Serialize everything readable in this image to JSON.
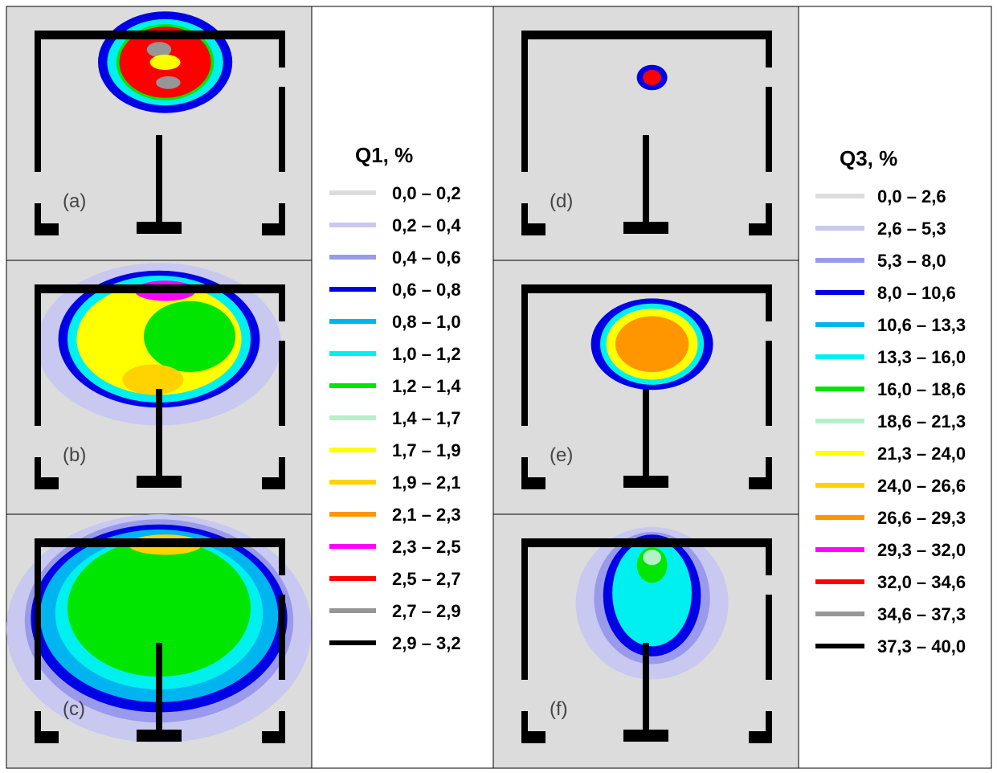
{
  "chart_data": {
    "type": "heatmap",
    "palette": [
      "#dcdcdc",
      "#c8c8f0",
      "#9a9aec",
      "#0000e6",
      "#00b4f0",
      "#00f0f0",
      "#00e600",
      "#b4f0c8",
      "#ffff00",
      "#ffd200",
      "#ff9600",
      "#ff00ff",
      "#ff0000",
      "#969696",
      "#000000"
    ],
    "legends": [
      {
        "title": "Q1, %",
        "ranges": [
          "0,0 – 0,2",
          "0,2 – 0,4",
          "0,4 – 0,6",
          "0,6 – 0,8",
          "0,8 – 1,0",
          "1,0 – 1,2",
          "1,2 – 1,4",
          "1,4 – 1,7",
          "1,7 – 1,9",
          "1,9 – 2,1",
          "2,1 – 2,3",
          "2,3 – 2,5",
          "2,5 – 2,7",
          "2,7 – 2,9",
          "2,9 – 3,2"
        ]
      },
      {
        "title": "Q3, %",
        "ranges": [
          "0,0 – 2,6",
          "2,6 – 5,3",
          "5,3 – 8,0",
          "8,0 – 10,6",
          "10,6 – 13,3",
          "13,3 – 16,0",
          "16,0 – 18,6",
          "18,6 – 21,3",
          "21,3 – 24,0",
          "24,0 – 26,6",
          "26,6 – 29,3",
          "29,3 – 32,0",
          "32,0 – 34,6",
          "34,6 – 37,3",
          "37,3 – 40,0"
        ]
      }
    ],
    "panels": [
      {
        "label": "(a)",
        "blobs": [
          {
            "level": 3,
            "cx": 0.52,
            "cy": 0.22,
            "rx": 0.22,
            "ry": 0.2
          },
          {
            "level": 5,
            "cx": 0.52,
            "cy": 0.22,
            "rx": 0.19,
            "ry": 0.17
          },
          {
            "level": 6,
            "cx": 0.52,
            "cy": 0.22,
            "rx": 0.16,
            "ry": 0.15
          },
          {
            "level": 12,
            "cx": 0.52,
            "cy": 0.22,
            "rx": 0.15,
            "ry": 0.14
          },
          {
            "level": 13,
            "cx": 0.5,
            "cy": 0.17,
            "rx": 0.04,
            "ry": 0.03
          },
          {
            "level": 13,
            "cx": 0.53,
            "cy": 0.3,
            "rx": 0.04,
            "ry": 0.025
          },
          {
            "level": 8,
            "cx": 0.52,
            "cy": 0.22,
            "rx": 0.05,
            "ry": 0.03
          }
        ]
      },
      {
        "label": "(b)",
        "blobs": [
          {
            "level": 1,
            "cx": 0.5,
            "cy": 0.33,
            "rx": 0.4,
            "ry": 0.32
          },
          {
            "level": 3,
            "cx": 0.5,
            "cy": 0.31,
            "rx": 0.33,
            "ry": 0.27
          },
          {
            "level": 5,
            "cx": 0.5,
            "cy": 0.31,
            "rx": 0.3,
            "ry": 0.25
          },
          {
            "level": 8,
            "cx": 0.5,
            "cy": 0.31,
            "rx": 0.27,
            "ry": 0.22
          },
          {
            "level": 6,
            "cx": 0.6,
            "cy": 0.3,
            "rx": 0.15,
            "ry": 0.14
          },
          {
            "level": 9,
            "cx": 0.48,
            "cy": 0.47,
            "rx": 0.1,
            "ry": 0.06
          },
          {
            "level": 11,
            "cx": 0.52,
            "cy": 0.12,
            "rx": 0.1,
            "ry": 0.04
          }
        ]
      },
      {
        "label": "(c)",
        "blobs": [
          {
            "level": 1,
            "cx": 0.5,
            "cy": 0.45,
            "rx": 0.5,
            "ry": 0.45
          },
          {
            "level": 2,
            "cx": 0.5,
            "cy": 0.42,
            "rx": 0.44,
            "ry": 0.4
          },
          {
            "level": 3,
            "cx": 0.5,
            "cy": 0.41,
            "rx": 0.42,
            "ry": 0.37
          },
          {
            "level": 4,
            "cx": 0.5,
            "cy": 0.4,
            "rx": 0.39,
            "ry": 0.34
          },
          {
            "level": 5,
            "cx": 0.5,
            "cy": 0.39,
            "rx": 0.34,
            "ry": 0.3
          },
          {
            "level": 6,
            "cx": 0.5,
            "cy": 0.37,
            "rx": 0.3,
            "ry": 0.27
          },
          {
            "level": 9,
            "cx": 0.52,
            "cy": 0.12,
            "rx": 0.12,
            "ry": 0.04
          }
        ]
      },
      {
        "label": "(d)",
        "blobs": [
          {
            "level": 3,
            "cx": 0.52,
            "cy": 0.28,
            "rx": 0.05,
            "ry": 0.05
          },
          {
            "level": 12,
            "cx": 0.52,
            "cy": 0.28,
            "rx": 0.03,
            "ry": 0.03
          }
        ]
      },
      {
        "label": "(e)",
        "blobs": [
          {
            "level": 3,
            "cx": 0.52,
            "cy": 0.33,
            "rx": 0.2,
            "ry": 0.18
          },
          {
            "level": 5,
            "cx": 0.52,
            "cy": 0.33,
            "rx": 0.17,
            "ry": 0.16
          },
          {
            "level": 8,
            "cx": 0.52,
            "cy": 0.33,
            "rx": 0.15,
            "ry": 0.14
          },
          {
            "level": 10,
            "cx": 0.52,
            "cy": 0.33,
            "rx": 0.12,
            "ry": 0.11
          }
        ]
      },
      {
        "label": "(f)",
        "blobs": [
          {
            "level": 1,
            "cx": 0.52,
            "cy": 0.35,
            "rx": 0.25,
            "ry": 0.3
          },
          {
            "level": 2,
            "cx": 0.52,
            "cy": 0.33,
            "rx": 0.19,
            "ry": 0.26
          },
          {
            "level": 3,
            "cx": 0.52,
            "cy": 0.32,
            "rx": 0.16,
            "ry": 0.24
          },
          {
            "level": 5,
            "cx": 0.52,
            "cy": 0.31,
            "rx": 0.13,
            "ry": 0.21
          },
          {
            "level": 6,
            "cx": 0.52,
            "cy": 0.2,
            "rx": 0.05,
            "ry": 0.07
          },
          {
            "level": 7,
            "cx": 0.52,
            "cy": 0.17,
            "rx": 0.03,
            "ry": 0.03
          }
        ]
      }
    ]
  }
}
